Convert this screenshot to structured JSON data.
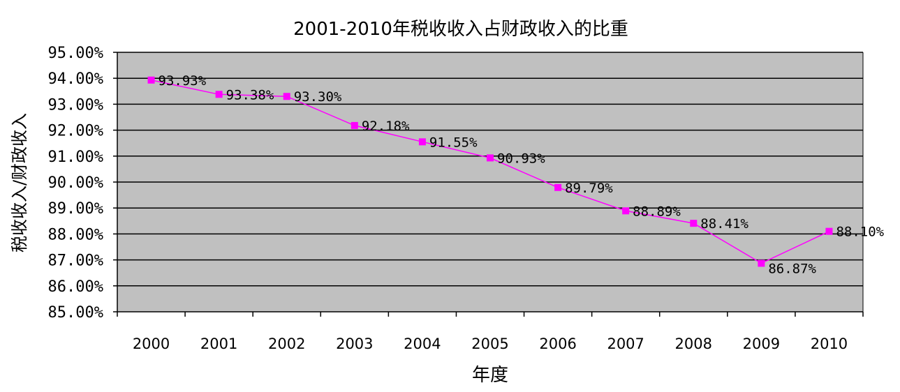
{
  "chart_data": {
    "type": "line",
    "title": "2001-2010年税收收入占财政收入的比重",
    "xlabel": "年度",
    "ylabel": "税收收入/财政收入",
    "categories": [
      "2000",
      "2001",
      "2002",
      "2003",
      "2004",
      "2005",
      "2006",
      "2007",
      "2008",
      "2009",
      "2010"
    ],
    "series": [
      {
        "values": [
          93.93,
          93.38,
          93.3,
          92.18,
          91.55,
          90.93,
          89.79,
          88.89,
          88.41,
          86.87,
          88.1
        ],
        "labels": [
          "93.93%",
          "93.38%",
          "93.30%",
          "92.18%",
          "91.55%",
          "90.93%",
          "89.79%",
          "88.89%",
          "88.41%",
          "86.87%",
          "88.10%"
        ]
      }
    ],
    "ylim": [
      85,
      95
    ],
    "yticks": [
      "85.00%",
      "86.00%",
      "87.00%",
      "88.00%",
      "89.00%",
      "90.00%",
      "91.00%",
      "92.00%",
      "93.00%",
      "94.00%",
      "95.00%"
    ],
    "grid": true,
    "legend": "none",
    "plot_background": "#c0c0c0",
    "line_color": "#ff00ff"
  }
}
